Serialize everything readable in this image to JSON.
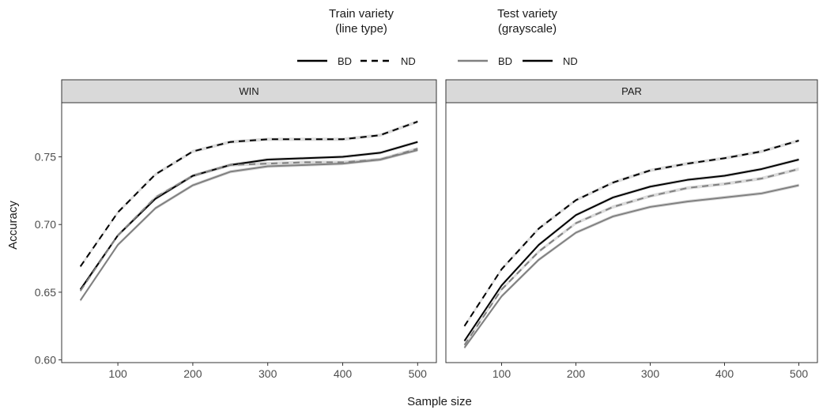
{
  "legend": {
    "line_type": {
      "title_line1": "Train variety",
      "title_line2": "(line type)",
      "items": [
        {
          "label": "BD",
          "dash": "solid"
        },
        {
          "label": "ND",
          "dash": "dashed"
        }
      ]
    },
    "grayscale": {
      "title_line1": "Test variety",
      "title_line2": "(grayscale)",
      "items": [
        {
          "label": "BD",
          "color": "#808080"
        },
        {
          "label": "ND",
          "color": "#000000"
        }
      ]
    },
    "placement": "top"
  },
  "chart_data": {
    "type": "line",
    "xlabel": "Sample size",
    "ylabel": "Accuracy",
    "xlim": [
      25,
      525
    ],
    "ylim": [
      0.598,
      0.79
    ],
    "x_ticks": [
      100,
      200,
      300,
      400,
      500
    ],
    "y_ticks": [
      "0.60",
      "0.65",
      "0.70",
      "0.75"
    ],
    "y_tick_values": [
      0.6,
      0.65,
      0.7,
      0.75
    ],
    "grid": false,
    "x": [
      50,
      100,
      150,
      200,
      250,
      300,
      350,
      400,
      450,
      500
    ],
    "panels": [
      {
        "title": "WIN",
        "series": [
          {
            "train": "ND",
            "test": "ND",
            "dash": "dashed",
            "color": "#000000",
            "values": [
              0.669,
              0.709,
              0.737,
              0.754,
              0.761,
              0.763,
              0.763,
              0.763,
              0.766,
              0.776
            ]
          },
          {
            "train": "BD",
            "test": "ND",
            "dash": "solid",
            "color": "#000000",
            "values": [
              0.652,
              0.692,
              0.719,
              0.736,
              0.744,
              0.748,
              0.749,
              0.75,
              0.753,
              0.761
            ]
          },
          {
            "train": "ND",
            "test": "BD",
            "dash": "dashed",
            "color": "#808080",
            "values": [
              0.651,
              0.692,
              0.72,
              0.736,
              0.744,
              0.745,
              0.746,
              0.746,
              0.748,
              0.756
            ]
          },
          {
            "train": "BD",
            "test": "BD",
            "dash": "solid",
            "color": "#808080",
            "values": [
              0.644,
              0.685,
              0.712,
              0.729,
              0.739,
              0.743,
              0.744,
              0.745,
              0.748,
              0.755
            ]
          }
        ]
      },
      {
        "title": "PAR",
        "series": [
          {
            "train": "ND",
            "test": "ND",
            "dash": "dashed",
            "color": "#000000",
            "values": [
              0.625,
              0.667,
              0.697,
              0.718,
              0.731,
              0.74,
              0.745,
              0.749,
              0.754,
              0.762
            ]
          },
          {
            "train": "BD",
            "test": "ND",
            "dash": "solid",
            "color": "#000000",
            "values": [
              0.614,
              0.655,
              0.685,
              0.707,
              0.72,
              0.728,
              0.733,
              0.736,
              0.741,
              0.748
            ]
          },
          {
            "train": "ND",
            "test": "BD",
            "dash": "dashed",
            "color": "#808080",
            "values": [
              0.611,
              0.652,
              0.68,
              0.701,
              0.713,
              0.721,
              0.727,
              0.73,
              0.734,
              0.741
            ]
          },
          {
            "train": "BD",
            "test": "BD",
            "dash": "solid",
            "color": "#808080",
            "values": [
              0.609,
              0.647,
              0.674,
              0.694,
              0.706,
              0.713,
              0.717,
              0.72,
              0.723,
              0.729
            ]
          }
        ]
      }
    ]
  }
}
